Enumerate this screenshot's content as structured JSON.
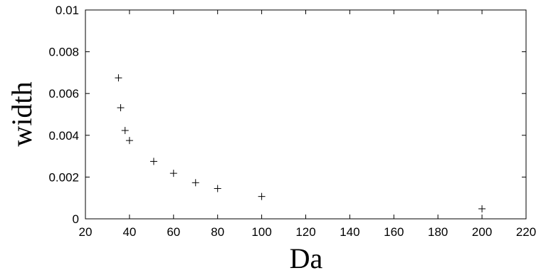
{
  "chart_data": {
    "type": "scatter",
    "title": "",
    "xlabel": "Da",
    "ylabel": "width",
    "xlim": [
      20,
      220
    ],
    "ylim": [
      0,
      0.01
    ],
    "xticks": [
      20,
      40,
      60,
      80,
      100,
      120,
      140,
      160,
      180,
      200,
      220
    ],
    "yticks": [
      0,
      0.002,
      0.004,
      0.006,
      0.008,
      0.01
    ],
    "grid": false,
    "legend": "none",
    "marker": "+",
    "series": [
      {
        "points": [
          {
            "x": 35,
            "y": 0.00675
          },
          {
            "x": 36,
            "y": 0.00532
          },
          {
            "x": 38,
            "y": 0.00423
          },
          {
            "x": 40,
            "y": 0.00375
          },
          {
            "x": 51,
            "y": 0.00275
          },
          {
            "x": 60,
            "y": 0.00218
          },
          {
            "x": 70,
            "y": 0.00173
          },
          {
            "x": 80,
            "y": 0.00145
          },
          {
            "x": 100,
            "y": 0.00107
          },
          {
            "x": 200,
            "y": 0.00048
          }
        ]
      }
    ],
    "colors": {
      "axis": "#000000",
      "marker": "#000000",
      "background": "#ffffff"
    }
  }
}
